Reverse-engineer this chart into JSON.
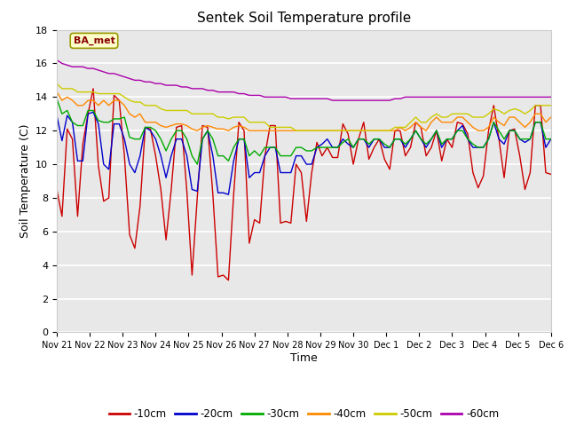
{
  "title": "Sentek Soil Temperature profile",
  "xlabel": "Time",
  "ylabel": "Soil Temperature (C)",
  "annotation": "BA_met",
  "ylim": [
    0,
    18
  ],
  "xlim": [
    0,
    15
  ],
  "yticks": [
    0,
    2,
    4,
    6,
    8,
    10,
    12,
    14,
    16,
    18
  ],
  "xtick_labels": [
    "Nov 21",
    "Nov 22",
    "Nov 23",
    "Nov 24",
    "Nov 25",
    "Nov 26",
    "Nov 27",
    "Nov 28",
    "Nov 29",
    "Nov 30",
    "Dec 1",
    "Dec 2",
    "Dec 3",
    "Dec 4",
    "Dec 5",
    "Dec 6"
  ],
  "colors": {
    "-10cm": "#cc0000",
    "-20cm": "#0000cc",
    "-30cm": "#00aa00",
    "-40cm": "#ff8800",
    "-50cm": "#cccc00",
    "-60cm": "#aa00aa"
  },
  "legend_labels": [
    "-10cm",
    "-20cm",
    "-30cm",
    "-40cm",
    "-50cm",
    "-60cm"
  ],
  "figure_bg": "#ffffff",
  "plot_bg": "#e8e8e8",
  "grid_color": "white",
  "depth_10": [
    8.5,
    6.9,
    12.1,
    11.5,
    6.9,
    11.2,
    13.0,
    14.5,
    9.9,
    7.8,
    8.0,
    14.1,
    13.8,
    10.5,
    5.8,
    5.0,
    7.5,
    12.2,
    12.1,
    10.5,
    8.5,
    5.5,
    8.5,
    12.2,
    12.3,
    8.4,
    3.4,
    8.0,
    12.3,
    12.2,
    8.2,
    3.3,
    3.4,
    3.1,
    8.2,
    12.5,
    12.0,
    5.3,
    6.7,
    6.5,
    10.5,
    12.3,
    12.3,
    6.5,
    6.6,
    6.5,
    10.0,
    9.5,
    6.6,
    9.5,
    11.3,
    10.5,
    11.0,
    10.4,
    10.4,
    12.4,
    11.8,
    10.0,
    11.5,
    12.5,
    10.3,
    11.0,
    11.5,
    10.3,
    9.7,
    12.0,
    12.0,
    10.5,
    11.0,
    12.5,
    12.2,
    10.5,
    11.0,
    12.0,
    10.2,
    11.5,
    11.0,
    12.5,
    12.4,
    11.8,
    9.5,
    8.6,
    9.3,
    12.0,
    13.5,
    11.5,
    9.2,
    12.0,
    12.1,
    10.5,
    8.5,
    9.5,
    13.5,
    13.5,
    9.5,
    9.4
  ],
  "depth_20": [
    12.9,
    11.4,
    12.9,
    12.5,
    10.2,
    10.2,
    13.0,
    13.1,
    12.4,
    10.0,
    9.7,
    12.4,
    12.4,
    11.5,
    10.0,
    9.5,
    10.5,
    12.2,
    12.0,
    11.5,
    10.5,
    9.2,
    10.5,
    11.5,
    11.5,
    10.5,
    8.5,
    8.4,
    11.5,
    12.0,
    10.5,
    8.3,
    8.3,
    8.2,
    10.2,
    11.5,
    11.5,
    9.2,
    9.5,
    9.5,
    10.5,
    11.0,
    11.0,
    9.5,
    9.5,
    9.5,
    10.5,
    10.5,
    10.0,
    10.0,
    11.0,
    11.2,
    11.5,
    11.0,
    11.0,
    11.5,
    11.2,
    11.0,
    11.5,
    11.5,
    11.0,
    11.5,
    11.5,
    11.0,
    11.0,
    11.5,
    11.5,
    11.0,
    11.5,
    12.0,
    11.5,
    11.0,
    11.5,
    12.0,
    11.0,
    11.5,
    11.5,
    12.0,
    12.3,
    11.5,
    11.0,
    11.0,
    11.0,
    11.5,
    12.5,
    11.5,
    11.2,
    12.0,
    12.0,
    11.5,
    11.3,
    11.5,
    12.5,
    12.5,
    11.0,
    11.5
  ],
  "depth_30": [
    13.9,
    13.0,
    13.2,
    12.5,
    12.3,
    12.3,
    13.2,
    13.2,
    12.6,
    12.5,
    12.5,
    12.7,
    12.7,
    12.8,
    11.6,
    11.5,
    11.5,
    12.2,
    12.2,
    12.0,
    11.5,
    10.8,
    11.5,
    12.0,
    12.0,
    11.5,
    10.5,
    10.0,
    11.5,
    12.0,
    11.5,
    10.5,
    10.5,
    10.2,
    11.0,
    11.5,
    11.5,
    10.5,
    10.8,
    10.5,
    11.0,
    11.0,
    11.0,
    10.5,
    10.5,
    10.5,
    11.0,
    11.0,
    10.8,
    10.8,
    11.0,
    11.0,
    11.0,
    11.0,
    11.0,
    11.3,
    11.5,
    11.0,
    11.5,
    11.5,
    11.2,
    11.5,
    11.5,
    11.2,
    11.0,
    11.5,
    11.5,
    11.2,
    11.5,
    12.0,
    11.5,
    11.2,
    11.5,
    12.0,
    11.2,
    11.5,
    11.5,
    12.0,
    12.0,
    11.5,
    11.2,
    11.0,
    11.0,
    11.5,
    12.5,
    12.0,
    11.5,
    12.0,
    12.0,
    11.5,
    11.5,
    11.5,
    12.5,
    12.5,
    11.5,
    11.5
  ],
  "depth_40": [
    14.3,
    13.8,
    14.0,
    13.8,
    13.5,
    13.5,
    13.8,
    13.8,
    13.5,
    13.8,
    13.5,
    13.8,
    13.8,
    13.5,
    13.0,
    12.8,
    13.0,
    12.5,
    12.5,
    12.5,
    12.3,
    12.2,
    12.3,
    12.4,
    12.4,
    12.3,
    12.1,
    12.0,
    12.2,
    12.3,
    12.2,
    12.1,
    12.1,
    12.0,
    12.2,
    12.3,
    12.2,
    12.0,
    12.0,
    12.0,
    12.0,
    12.0,
    12.0,
    12.0,
    12.0,
    12.0,
    12.0,
    12.0,
    12.0,
    12.0,
    12.0,
    12.0,
    12.0,
    12.0,
    12.0,
    12.0,
    12.0,
    12.0,
    12.0,
    12.0,
    12.0,
    12.0,
    12.0,
    12.0,
    12.0,
    12.0,
    12.2,
    12.0,
    12.2,
    12.5,
    12.2,
    12.0,
    12.5,
    12.8,
    12.5,
    12.5,
    12.5,
    12.8,
    12.8,
    12.5,
    12.2,
    12.0,
    12.0,
    12.2,
    12.8,
    12.5,
    12.3,
    12.8,
    12.8,
    12.5,
    12.2,
    12.5,
    13.0,
    13.0,
    12.5,
    12.8
  ],
  "depth_50": [
    14.8,
    14.5,
    14.5,
    14.5,
    14.3,
    14.3,
    14.3,
    14.3,
    14.2,
    14.2,
    14.2,
    14.2,
    14.2,
    14.0,
    13.8,
    13.7,
    13.7,
    13.5,
    13.5,
    13.5,
    13.3,
    13.2,
    13.2,
    13.2,
    13.2,
    13.2,
    13.0,
    13.0,
    13.0,
    13.0,
    13.0,
    12.8,
    12.8,
    12.7,
    12.8,
    12.8,
    12.8,
    12.5,
    12.5,
    12.5,
    12.5,
    12.2,
    12.2,
    12.2,
    12.2,
    12.2,
    12.0,
    12.0,
    12.0,
    12.0,
    12.0,
    12.0,
    12.0,
    12.0,
    12.0,
    12.0,
    12.0,
    12.0,
    12.0,
    12.0,
    12.0,
    12.0,
    12.0,
    12.0,
    12.0,
    12.2,
    12.2,
    12.2,
    12.5,
    12.8,
    12.5,
    12.5,
    12.8,
    13.0,
    12.8,
    12.8,
    13.0,
    13.0,
    13.0,
    13.0,
    12.8,
    12.8,
    12.8,
    13.0,
    13.3,
    13.2,
    13.0,
    13.2,
    13.3,
    13.2,
    13.0,
    13.2,
    13.5,
    13.5,
    13.5,
    13.5
  ],
  "depth_60": [
    16.2,
    16.0,
    15.9,
    15.8,
    15.8,
    15.8,
    15.7,
    15.7,
    15.6,
    15.5,
    15.4,
    15.4,
    15.3,
    15.2,
    15.1,
    15.0,
    15.0,
    14.9,
    14.9,
    14.8,
    14.8,
    14.7,
    14.7,
    14.7,
    14.6,
    14.6,
    14.5,
    14.5,
    14.5,
    14.4,
    14.4,
    14.3,
    14.3,
    14.3,
    14.3,
    14.2,
    14.2,
    14.1,
    14.1,
    14.1,
    14.0,
    14.0,
    14.0,
    14.0,
    14.0,
    13.9,
    13.9,
    13.9,
    13.9,
    13.9,
    13.9,
    13.9,
    13.9,
    13.8,
    13.8,
    13.8,
    13.8,
    13.8,
    13.8,
    13.8,
    13.8,
    13.8,
    13.8,
    13.8,
    13.8,
    13.9,
    13.9,
    14.0,
    14.0,
    14.0,
    14.0,
    14.0,
    14.0,
    14.0,
    14.0,
    14.0,
    14.0,
    14.0,
    14.0,
    14.0,
    14.0,
    14.0,
    14.0,
    14.0,
    14.0,
    14.0,
    14.0,
    14.0,
    14.0,
    14.0,
    14.0,
    14.0,
    14.0,
    14.0,
    14.0,
    14.0
  ]
}
